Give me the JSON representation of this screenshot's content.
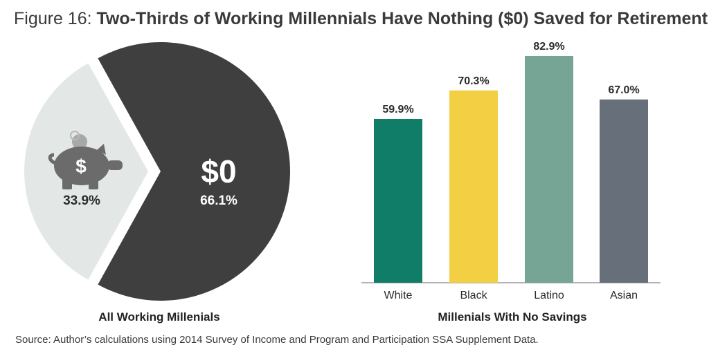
{
  "title": {
    "figure_label": "Figure 16:",
    "text": "Two-Thirds of Working Millennials Have Nothing ($0) Saved for Retirement"
  },
  "colors": {
    "pie_zero": "#3f3f3f",
    "pie_other": "#e3e8e6",
    "piggy_bank": "#6b6b6b",
    "coin": "#a8a8a8",
    "axis": "#9a9a9a"
  },
  "chart_data": [
    {
      "type": "pie",
      "caption": "All Working Millenials",
      "slices": [
        {
          "label": "$0",
          "value": 66.1,
          "value_label": "66.1%",
          "color": "#3f3f3f"
        },
        {
          "label": "$",
          "value": 33.9,
          "value_label": "33.9%",
          "color": "#e3e8e6",
          "icon": "piggy-bank-icon"
        }
      ]
    },
    {
      "type": "bar",
      "caption": "Millenials With No Savings",
      "categories": [
        "White",
        "Black",
        "Latino",
        "Asian"
      ],
      "values": [
        59.9,
        70.3,
        82.9,
        67.0
      ],
      "value_labels": [
        "59.9%",
        "70.3%",
        "82.9%",
        "67.0%"
      ],
      "colors": [
        "#0f7d68",
        "#f3cf43",
        "#76a596",
        "#67707a"
      ],
      "ylim": [
        0,
        85
      ]
    }
  ],
  "source": "Source: Author’s calculations using 2014 Survey of Income and Program and Participation SSA Supplement Data."
}
